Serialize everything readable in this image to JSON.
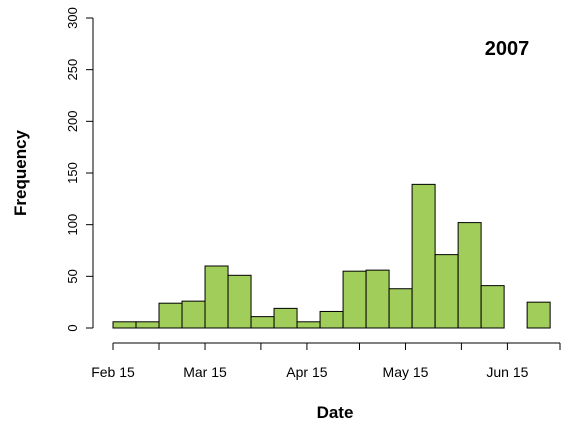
{
  "chart_data": {
    "type": "histogram",
    "annotation": "2007",
    "x_label": "Date",
    "y_label": "Frequency",
    "bins": [
      46,
      53,
      60,
      67,
      74,
      81,
      88,
      95,
      102,
      109,
      116,
      123,
      130,
      137,
      144,
      151,
      158,
      165,
      172,
      179
    ],
    "values": [
      6,
      6,
      24,
      26,
      60,
      51,
      11,
      19,
      6,
      16,
      55,
      56,
      38,
      139,
      71,
      102,
      41,
      0,
      25
    ],
    "color": "#a1cd5a",
    "xlim": [
      46,
      182
    ],
    "xticks": [
      {
        "value": 46,
        "label": "Feb 15"
      },
      {
        "value": 60,
        "label": null
      },
      {
        "value": 74,
        "label": "Mar 15"
      },
      {
        "value": 91,
        "label": null
      },
      {
        "value": 105,
        "label": "Apr 15"
      },
      {
        "value": 121,
        "label": null
      },
      {
        "value": 135,
        "label": "May 15"
      },
      {
        "value": 152,
        "label": null
      },
      {
        "value": 166,
        "label": "Jun 15"
      },
      {
        "value": 182,
        "label": null
      }
    ],
    "ylim": [
      0,
      300
    ],
    "yticks": [
      0,
      50,
      100,
      150,
      200,
      250,
      300
    ]
  }
}
